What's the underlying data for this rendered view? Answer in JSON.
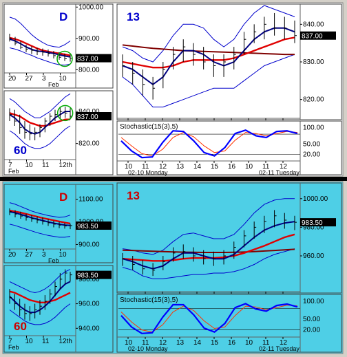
{
  "colors": {
    "frame": "#d4d0c8",
    "top_bg": "#ffffff",
    "bottom_bg": "#4ecfe6",
    "bollinger": "#0000cc",
    "price_bar": "#000000",
    "avg_fast": "#000080",
    "avg_slow": "#e00000",
    "avg_long": "#800000",
    "stoch_k": "#0000ff",
    "stoch_d": "#ff3300",
    "price_flag_bg": "#000000",
    "price_flag_text": "#ffffff",
    "highlight_circle": "#00aa00",
    "divider": "#000000"
  },
  "chart_data": [
    {
      "id": "top-daily",
      "type": "line",
      "section": "top",
      "timeframe_label": "D",
      "yticks": [
        1000,
        900,
        837,
        800
      ],
      "ylim": [
        790,
        1005
      ],
      "xticks": [
        "20",
        "27",
        "3",
        "10"
      ],
      "xlabel2": "Feb",
      "price_flag": "837.00",
      "highlight_circle": true,
      "series": {
        "upper_band": [
          968,
          962,
          948,
          930,
          912,
          898,
          887,
          878,
          874,
          872,
          880,
          892
        ],
        "lower_band": [
          870,
          866,
          860,
          852,
          846,
          838,
          832,
          826,
          820,
          816,
          815,
          818
        ],
        "avg_fast": [
          898,
          892,
          883,
          873,
          865,
          860,
          858,
          855,
          852,
          848,
          844,
          841
        ],
        "avg_slow": [
          902,
          898,
          892,
          884,
          876,
          868,
          862,
          858,
          855,
          852,
          849,
          846
        ],
        "price_high": [
          915,
          905,
          890,
          880,
          875,
          870,
          868,
          865,
          860,
          856,
          852,
          848
        ],
        "price_low": [
          890,
          878,
          866,
          856,
          850,
          847,
          845,
          842,
          836,
          832,
          828,
          826
        ],
        "price_close": [
          900,
          885,
          872,
          866,
          862,
          858,
          856,
          852,
          845,
          840,
          835,
          837
        ]
      }
    },
    {
      "id": "top-60min",
      "type": "line",
      "section": "top",
      "timeframe_label": "60",
      "yticks": [
        840,
        837,
        820
      ],
      "ylim": [
        810,
        852
      ],
      "xticks": [
        "7",
        "10",
        "11",
        "12th"
      ],
      "xlabel2": "Feb",
      "price_flag": "837.00",
      "highlight_circle": true,
      "series": {
        "upper_band": [
          848,
          846,
          843,
          840,
          838,
          836,
          836,
          838,
          840,
          843,
          846,
          849,
          851
        ],
        "lower_band": [
          828,
          826,
          823,
          820,
          818,
          817,
          817,
          818,
          820,
          823,
          826,
          829,
          831
        ],
        "avg_fast": [
          838,
          836,
          833,
          829,
          827,
          826,
          827,
          830,
          833,
          836,
          838,
          840,
          840
        ],
        "avg_slow": [
          839,
          838,
          837,
          835,
          833,
          832,
          831,
          831,
          832,
          833,
          834,
          835,
          835
        ],
        "price_high": [
          842,
          841,
          838,
          834,
          832,
          830,
          832,
          836,
          839,
          841,
          843,
          843,
          842
        ],
        "price_low": [
          834,
          831,
          826,
          823,
          822,
          822,
          824,
          827,
          831,
          834,
          835,
          836,
          835
        ],
        "price_close": [
          838,
          834,
          830,
          827,
          826,
          827,
          830,
          834,
          837,
          838,
          840,
          839,
          837
        ]
      }
    },
    {
      "id": "top-13min",
      "type": "line",
      "section": "top",
      "timeframe_label": "13",
      "yticks": [
        840,
        837,
        830,
        820
      ],
      "ylim": [
        815,
        845
      ],
      "xticks": [
        "10",
        "11",
        "12",
        "13",
        "14",
        "15",
        "16",
        "10",
        "11",
        "12"
      ],
      "date_labels": [
        "02-10 Monday",
        "02-11 Tuesday"
      ],
      "price_flag": "837.00",
      "series": {
        "upper_band": [
          834,
          833,
          831,
          830,
          833,
          837,
          840,
          840,
          839,
          836,
          834,
          836,
          840,
          843,
          845,
          844,
          843,
          842
        ],
        "lower_band": [
          826,
          824,
          821,
          818,
          818,
          819,
          820,
          821,
          822,
          823,
          823,
          823,
          825,
          827,
          829,
          830,
          831,
          832
        ],
        "avg_fast": [
          829,
          828,
          826,
          824,
          826,
          830,
          833,
          833,
          832,
          830,
          829,
          830,
          833,
          836,
          838,
          839,
          839,
          838
        ],
        "avg_slow": [
          830,
          829.5,
          829,
          828.5,
          828.5,
          829,
          830,
          830.5,
          830.5,
          830.5,
          830.5,
          831,
          832,
          833,
          834,
          835,
          836,
          836.5
        ],
        "avg_long": [
          834.5,
          834.2,
          833.9,
          833.6,
          833.4,
          833.2,
          833.0,
          832.9,
          832.8,
          832.7,
          832.6,
          832.5,
          832.4,
          832.3,
          832.2,
          832.1,
          832.0,
          832.0
        ],
        "price_high": [
          832,
          830,
          828,
          826,
          830,
          834,
          836,
          835,
          834,
          832,
          832,
          834,
          838,
          840,
          842,
          843,
          842,
          841
        ],
        "price_low": [
          826,
          824,
          821,
          820,
          823,
          828,
          830,
          829,
          828,
          826,
          826,
          828,
          832,
          835,
          836,
          837,
          836,
          835
        ],
        "price_close": [
          829,
          827,
          824,
          823,
          828,
          832,
          834,
          832,
          830,
          829,
          830,
          832,
          836,
          838,
          840,
          839,
          839,
          837
        ]
      }
    },
    {
      "id": "top-stochastic",
      "type": "line",
      "section": "top",
      "title": "Stochastic(15(3),5)",
      "yticks": [
        100,
        50,
        20
      ],
      "ylim": [
        0,
        115
      ],
      "xticks": [
        "10",
        "11",
        "12",
        "13",
        "14",
        "15",
        "16",
        "10",
        "11",
        "12"
      ],
      "date_labels": [
        "02-10 Monday",
        "02-11 Tuesday"
      ],
      "reference_lines": [
        80,
        20
      ],
      "series": {
        "k": [
          60,
          30,
          10,
          12,
          55,
          90,
          88,
          60,
          25,
          15,
          40,
          82,
          92,
          75,
          70,
          88,
          90,
          82
        ],
        "d": [
          70,
          45,
          22,
          15,
          35,
          70,
          85,
          72,
          45,
          25,
          30,
          62,
          85,
          82,
          75,
          82,
          88,
          85
        ]
      }
    },
    {
      "id": "bottom-daily",
      "type": "line",
      "section": "bottom",
      "timeframe_label": "D",
      "yticks": [
        1100,
        1000,
        983.5,
        900
      ],
      "ylim": [
        880,
        1160
      ],
      "xticks": [
        "20",
        "27",
        "3",
        "10"
      ],
      "xlabel2": "Feb",
      "price_flag": "983.50",
      "series": {
        "upper_band": [
          1085,
          1078,
          1068,
          1058,
          1048,
          1040,
          1034,
          1028,
          1024,
          1020,
          1022,
          1030
        ],
        "lower_band": [
          990,
          984,
          976,
          968,
          960,
          952,
          946,
          940,
          936,
          932,
          932,
          936
        ],
        "avg_fast": [
          1045,
          1040,
          1033,
          1026,
          1018,
          1012,
          1006,
          1000,
          994,
          990,
          986,
          984
        ],
        "avg_slow": [
          1050,
          1046,
          1041,
          1035,
          1029,
          1023,
          1017,
          1012,
          1007,
          1002,
          997,
          993
        ],
        "price_high": [
          1060,
          1052,
          1045,
          1036,
          1030,
          1024,
          1020,
          1012,
          1005,
          1000,
          996,
          992
        ],
        "price_low": [
          1030,
          1020,
          1014,
          1006,
          1000,
          994,
          988,
          982,
          976,
          972,
          970,
          968
        ],
        "price_close": [
          1045,
          1035,
          1026,
          1020,
          1014,
          1008,
          1002,
          996,
          990,
          986,
          982,
          983.5
        ]
      }
    },
    {
      "id": "bottom-60min",
      "type": "line",
      "section": "bottom",
      "timeframe_label": "60",
      "yticks": [
        983.5,
        980,
        960,
        940
      ],
      "ylim": [
        934,
        990
      ],
      "xticks": [
        "7",
        "10",
        "11",
        "12th"
      ],
      "xlabel2": "Feb",
      "price_flag": "983.50",
      "series": {
        "upper_band": [
          978,
          976,
          974,
          972,
          970,
          969,
          970,
          972,
          975,
          979,
          983,
          986,
          988
        ],
        "lower_band": [
          955,
          952,
          949,
          946,
          944,
          943,
          943,
          944,
          946,
          949,
          953,
          957,
          960
        ],
        "avg_fast": [
          966,
          962,
          958,
          955,
          953,
          953,
          955,
          958,
          962,
          967,
          972,
          976,
          978
        ],
        "avg_slow": [
          970,
          969,
          967,
          965,
          963,
          962,
          961,
          961,
          962,
          963,
          965,
          967,
          969
        ],
        "price_high": [
          972,
          968,
          964,
          960,
          958,
          960,
          963,
          967,
          972,
          978,
          985,
          988,
          986
        ],
        "price_low": [
          960,
          955,
          950,
          947,
          946,
          948,
          951,
          955,
          960,
          966,
          972,
          976,
          978
        ],
        "price_close": [
          965,
          960,
          955,
          952,
          952,
          955,
          958,
          962,
          968,
          974,
          980,
          985,
          983.5
        ]
      }
    },
    {
      "id": "bottom-13min",
      "type": "line",
      "section": "bottom",
      "timeframe_label": "13",
      "yticks": [
        1000,
        983.5,
        980,
        960
      ],
      "ylim": [
        935,
        1010
      ],
      "xticks": [
        "10",
        "11",
        "12",
        "13",
        "14",
        "15",
        "16",
        "10",
        "11",
        "12"
      ],
      "date_labels": [
        "02-10 Monday",
        "02-11 Tuesday"
      ],
      "price_flag": "983.50",
      "series": {
        "upper_band": [
          965,
          964,
          962,
          961,
          964,
          970,
          975,
          976,
          974,
          972,
          972,
          975,
          982,
          990,
          996,
          999,
          1000,
          1000
        ],
        "lower_band": [
          952,
          950,
          946,
          944,
          944,
          945,
          946,
          947,
          947,
          948,
          948,
          949,
          951,
          954,
          958,
          961,
          963,
          965
        ],
        "avg_fast": [
          958,
          956,
          953,
          951,
          953,
          958,
          962,
          962,
          960,
          958,
          958,
          961,
          967,
          973,
          978,
          981,
          983,
          984
        ],
        "avg_slow": [
          958,
          957.5,
          957,
          956.5,
          956.5,
          957,
          958,
          958.5,
          958.5,
          958.5,
          959,
          960,
          962,
          964.5,
          967,
          970,
          973,
          975
        ],
        "avg_long": [
          964,
          963.8,
          963.5,
          963.2,
          963,
          962.8,
          962.6,
          962.5,
          962.4,
          962.4,
          962.4,
          962.5,
          962.7,
          963,
          963.4,
          963.8,
          964.2,
          964.6
        ],
        "price_high": [
          962,
          960,
          957,
          955,
          960,
          966,
          968,
          966,
          964,
          963,
          964,
          970,
          978,
          984,
          988,
          992,
          990,
          988
        ],
        "price_low": [
          953,
          950,
          947,
          946,
          950,
          956,
          958,
          956,
          954,
          953,
          954,
          958,
          966,
          972,
          976,
          980,
          979,
          978
        ],
        "price_close": [
          958,
          954,
          951,
          950,
          956,
          962,
          963,
          960,
          958,
          958,
          960,
          966,
          974,
          980,
          984,
          988,
          985,
          983.5
        ]
      }
    },
    {
      "id": "bottom-stochastic",
      "type": "line",
      "section": "bottom",
      "title": "Stochastic(15(3),5)",
      "yticks": [
        100,
        50,
        20
      ],
      "ylim": [
        0,
        115
      ],
      "xticks": [
        "10",
        "11",
        "12",
        "13",
        "14",
        "15",
        "16",
        "10",
        "11",
        "12"
      ],
      "date_labels": [
        "02-10 Monday",
        "02-11 Tuesday"
      ],
      "reference_lines": [
        80,
        20
      ],
      "series": {
        "k": [
          60,
          28,
          10,
          12,
          55,
          90,
          90,
          62,
          25,
          14,
          38,
          82,
          93,
          78,
          72,
          88,
          92,
          84
        ],
        "d": [
          70,
          42,
          20,
          14,
          34,
          70,
          86,
          74,
          45,
          24,
          28,
          60,
          86,
          84,
          76,
          82,
          89,
          87
        ]
      }
    }
  ]
}
